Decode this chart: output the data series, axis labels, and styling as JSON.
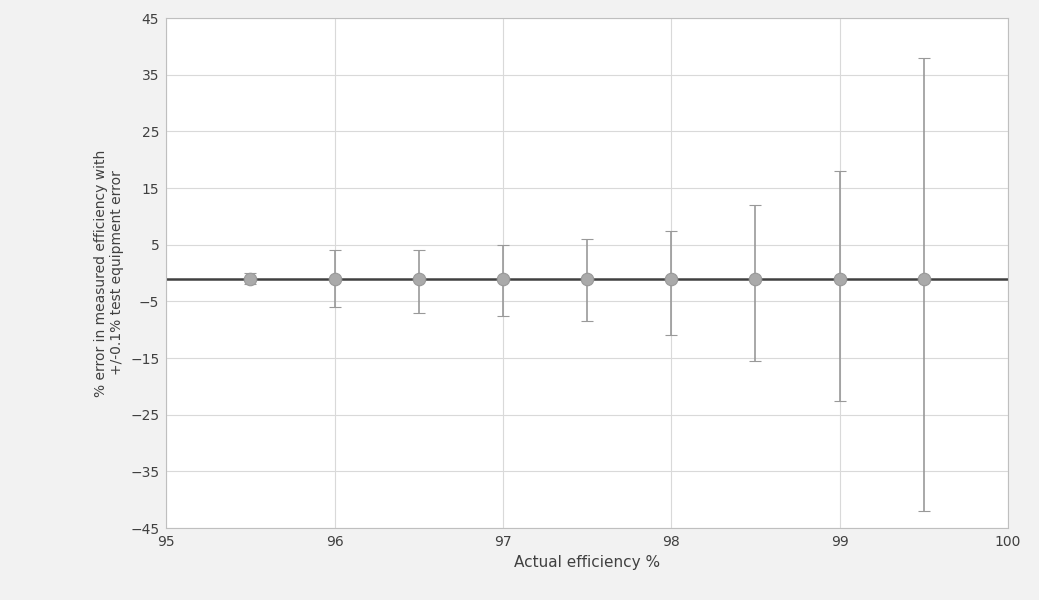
{
  "x": [
    95.5,
    96.0,
    96.5,
    97.0,
    97.5,
    98.0,
    98.5,
    99.0,
    99.5
  ],
  "y": [
    -1.0,
    -1.0,
    -1.0,
    -1.0,
    -1.0,
    -1.0,
    -1.0,
    -1.0,
    -1.0
  ],
  "yerr_upper": [
    1.0,
    5.0,
    5.0,
    6.0,
    7.0,
    8.5,
    13.0,
    19.0,
    39.0
  ],
  "yerr_lower": [
    1.0,
    5.0,
    6.0,
    6.5,
    7.5,
    10.0,
    14.5,
    21.5,
    41.0
  ],
  "hline_y": -1.0,
  "xlabel": "Actual efficiency %",
  "ylabel": "% error in measured efficiency with\n+/-0.1% test equipment error",
  "xlim": [
    95.0,
    100.0
  ],
  "ylim": [
    -45,
    45
  ],
  "yticks": [
    -45,
    -35,
    -25,
    -15,
    -5,
    5,
    15,
    25,
    35,
    45
  ],
  "xticks": [
    95,
    96,
    97,
    98,
    99,
    100
  ],
  "marker_color": "#aaaaaa",
  "marker_edge_color": "#999999",
  "line_color": "#404040",
  "errorbar_color": "#999999",
  "grid_color": "#d9d9d9",
  "plot_bg_color": "#ffffff",
  "fig_bg_color": "#f2f2f2",
  "marker_size": 9,
  "linewidth": 1.8,
  "elinewidth": 1.2,
  "capsize": 4,
  "capthick": 1.2,
  "xlabel_fontsize": 11,
  "ylabel_fontsize": 10,
  "tick_fontsize": 10
}
